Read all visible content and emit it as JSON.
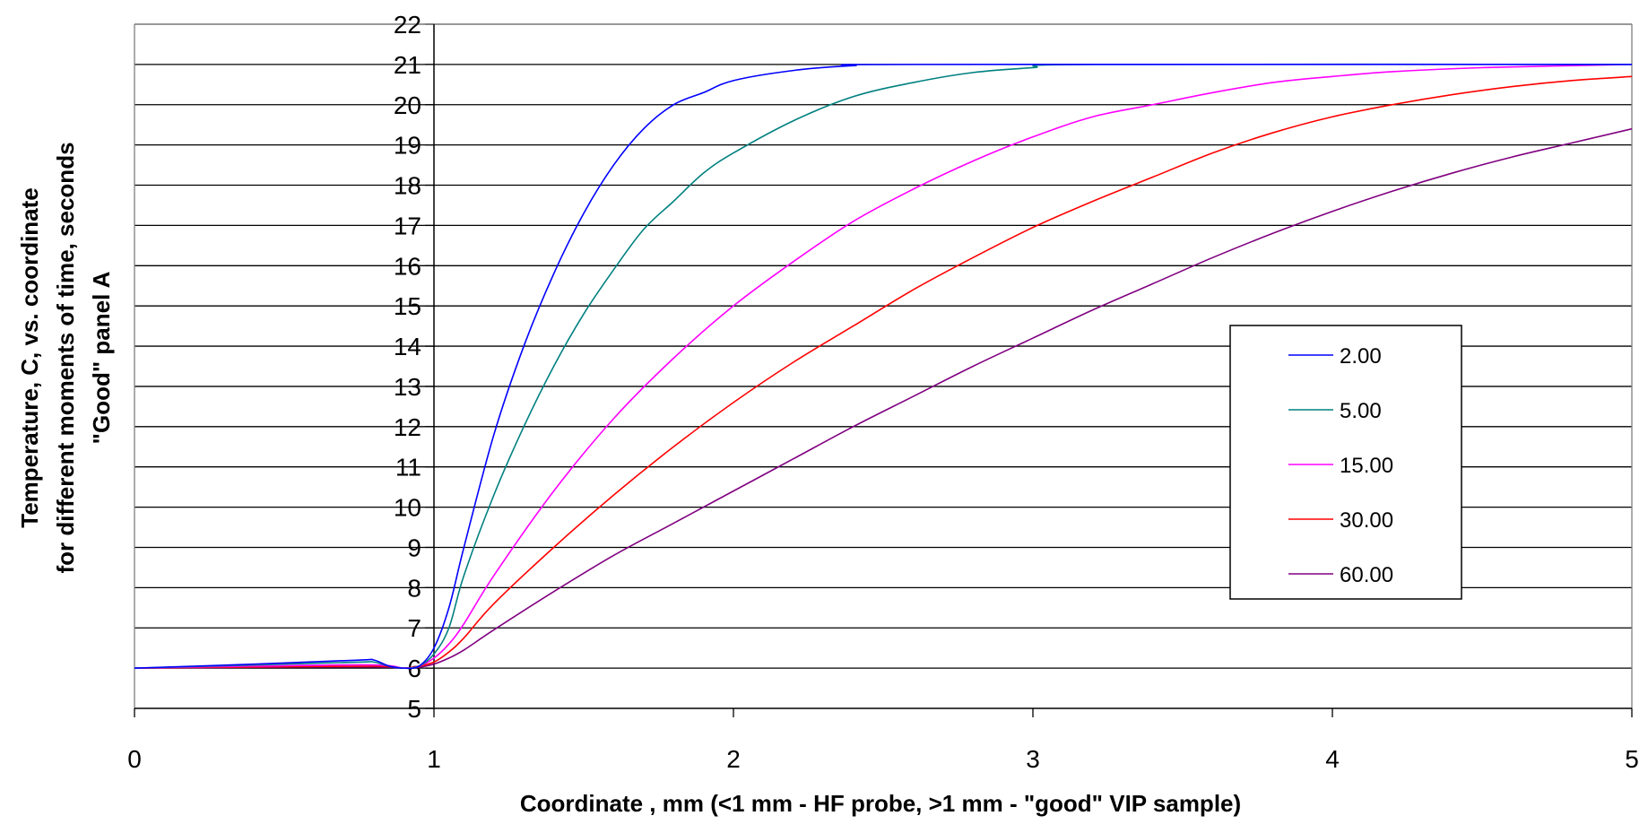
{
  "chart_data": {
    "type": "line",
    "title": "",
    "xlabel": "Coordinate , mm (<1 mm - HF probe, >1 mm - \"good\" VIP sample)",
    "ylabel_lines": [
      "Temperature, C, vs. coordinate",
      "for different moments of time, seconds",
      "\"Good\" panel A"
    ],
    "xlim": [
      0,
      5
    ],
    "ylim": [
      5,
      22
    ],
    "x_ticks": [
      "0",
      "1",
      "2",
      "3",
      "4",
      "5"
    ],
    "y_ticks": [
      "5",
      "6",
      "7",
      "8",
      "9",
      "10",
      "11",
      "12",
      "13",
      "14",
      "15",
      "16",
      "17",
      "18",
      "19",
      "20",
      "21",
      "22"
    ],
    "grid": "horizontal",
    "legend_position": "right",
    "series": [
      {
        "name": "2.00",
        "color": "#0000ff",
        "x": [
          0,
          0.4,
          0.75,
          0.8,
          0.85,
          0.9,
          0.95,
          1.0,
          1.05,
          1.1,
          1.2,
          1.3,
          1.4,
          1.5,
          1.6,
          1.7,
          1.8,
          1.9,
          2.0,
          2.2,
          2.4,
          2.6,
          5.0
        ],
        "y": [
          6.0,
          6.1,
          6.2,
          6.2,
          6.05,
          6.0,
          6.05,
          6.5,
          7.5,
          9.0,
          11.8,
          14.0,
          15.8,
          17.3,
          18.5,
          19.4,
          20.0,
          20.3,
          20.6,
          20.85,
          20.97,
          21.0,
          21.0
        ]
      },
      {
        "name": "5.00",
        "color": "#008080",
        "x": [
          0,
          0.4,
          0.75,
          0.8,
          0.85,
          0.9,
          0.95,
          1.0,
          1.05,
          1.1,
          1.2,
          1.3,
          1.4,
          1.5,
          1.6,
          1.7,
          1.8,
          1.9,
          2.0,
          2.2,
          2.4,
          2.6,
          2.8,
          3.0,
          3.2,
          5.0
        ],
        "y": [
          6.0,
          6.08,
          6.15,
          6.15,
          6.05,
          6.0,
          6.05,
          6.35,
          7.0,
          8.3,
          10.3,
          12.0,
          13.5,
          14.8,
          15.9,
          16.9,
          17.6,
          18.3,
          18.8,
          19.6,
          20.2,
          20.55,
          20.8,
          20.92,
          21.0,
          21.0
        ]
      },
      {
        "name": "15.00",
        "color": "#ff00ff",
        "x": [
          0,
          0.4,
          0.8,
          0.9,
          0.95,
          1.0,
          1.05,
          1.1,
          1.2,
          1.4,
          1.6,
          1.8,
          2.0,
          2.2,
          2.4,
          2.6,
          2.8,
          3.0,
          3.2,
          3.4,
          3.6,
          3.8,
          4.0,
          4.2,
          4.5,
          5.0
        ],
        "y": [
          6.0,
          6.05,
          6.08,
          6.0,
          6.05,
          6.25,
          6.6,
          7.1,
          8.3,
          10.4,
          12.2,
          13.7,
          15.0,
          16.1,
          17.1,
          17.9,
          18.6,
          19.2,
          19.7,
          20.0,
          20.3,
          20.55,
          20.7,
          20.82,
          20.92,
          21.0
        ]
      },
      {
        "name": "30.00",
        "color": "#ff0000",
        "x": [
          0,
          0.4,
          0.8,
          0.9,
          0.95,
          1.0,
          1.05,
          1.1,
          1.2,
          1.4,
          1.6,
          1.8,
          2.0,
          2.2,
          2.4,
          2.6,
          2.8,
          3.0,
          3.2,
          3.4,
          3.6,
          3.8,
          4.0,
          4.2,
          4.4,
          4.6,
          4.8,
          5.0
        ],
        "y": [
          6.0,
          6.03,
          6.05,
          6.0,
          6.05,
          6.15,
          6.4,
          6.75,
          7.6,
          9.0,
          10.3,
          11.5,
          12.6,
          13.6,
          14.5,
          15.4,
          16.2,
          16.95,
          17.6,
          18.2,
          18.8,
          19.3,
          19.7,
          20.0,
          20.25,
          20.45,
          20.6,
          20.7
        ]
      },
      {
        "name": "60.00",
        "color": "#800080",
        "x": [
          0,
          0.4,
          0.8,
          0.9,
          0.95,
          1.0,
          1.05,
          1.1,
          1.2,
          1.4,
          1.6,
          1.8,
          2.0,
          2.2,
          2.4,
          2.6,
          2.8,
          3.0,
          3.2,
          3.4,
          3.6,
          3.8,
          4.0,
          4.2,
          4.4,
          4.6,
          4.8,
          5.0
        ],
        "y": [
          6.0,
          6.02,
          6.03,
          6.0,
          6.02,
          6.1,
          6.25,
          6.45,
          6.95,
          7.9,
          8.8,
          9.6,
          10.4,
          11.2,
          12.0,
          12.75,
          13.5,
          14.2,
          14.9,
          15.55,
          16.2,
          16.8,
          17.35,
          17.85,
          18.3,
          18.7,
          19.05,
          19.4
        ]
      }
    ]
  }
}
